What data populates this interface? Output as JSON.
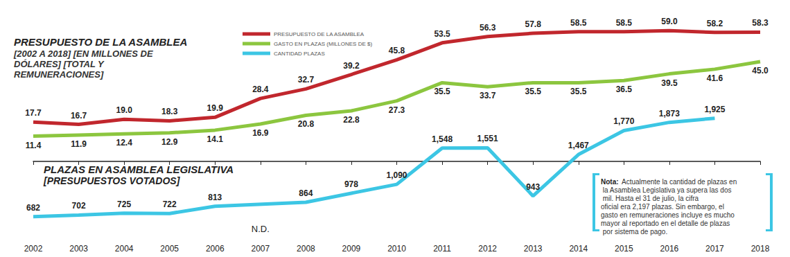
{
  "chart_data": {
    "type": "line",
    "title": "PRESUPUESTO DE LA ASAMBLEA",
    "subtitle": "[2002 A 2018] [EN MILLONES DE DÓLARES] [TOTAL Y REMUNERACIONES]",
    "annotations": [
      {
        "text": "PLAZAS EN ASAMBLEA LEGISLATIVA",
        "subtext": "[PRESUPUESTOS VOTADOS]"
      },
      {
        "label": "Nota:",
        "text": "Actualmente la cantidad de plazas en la Asamblea Legislativa ya supera las dos mil. Hasta el 31 de julio, la cifra oficial era 2,197 plazas. Sin embargo, el gasto en remuneraciones incluye es mucho mayor al reportado en el detalle de plazas por sistema de pago."
      }
    ],
    "categories": [
      "2002",
      "2003",
      "2004",
      "2005",
      "2006",
      "2007",
      "2008",
      "2009",
      "2010",
      "2011",
      "2012",
      "2013",
      "2014",
      "2015",
      "2016",
      "2017",
      "2018"
    ],
    "series": [
      {
        "name": "PRESUPUESTO DE LA ASAMBLEA",
        "color": "#c1272d",
        "values": [
          17.7,
          16.7,
          19.0,
          18.3,
          19.9,
          28.4,
          32.7,
          39.2,
          45.8,
          53.5,
          56.3,
          57.8,
          58.5,
          58.5,
          59.0,
          58.2,
          58.3
        ],
        "value_labels": [
          "17.7",
          "16.7",
          "19.0",
          "18.3",
          "19.9",
          "28.4",
          "32.7",
          "39.2",
          "45.8",
          "53.5",
          "56.3",
          "57.8",
          "58.5",
          "58.5",
          "59.0",
          "58.2",
          "58.3"
        ]
      },
      {
        "name": "GASTO EN PLAZAS (MILLONES DE $)",
        "color": "#8cc63f",
        "values": [
          11.4,
          11.9,
          12.4,
          12.9,
          14.1,
          16.9,
          20.8,
          22.8,
          27.3,
          35.5,
          33.7,
          35.5,
          35.5,
          36.5,
          39.5,
          41.6,
          45.0
        ],
        "value_labels": [
          "11.4",
          "11.9",
          "12.4",
          "12.9",
          "14.1",
          "16.9",
          "20.8",
          "22.8",
          "27.3",
          "35.5",
          "33.7",
          "35.5",
          "35.5",
          "36.5",
          "39.5",
          "41.6",
          "45.0"
        ]
      },
      {
        "name": "CANTIDAD PLAZAS",
        "color": "#3cc6e4",
        "axis": "y2",
        "values": [
          682,
          702,
          725,
          722,
          813,
          null,
          864,
          978,
          1090,
          1548,
          1551,
          943,
          1467,
          1770,
          1873,
          1925,
          null
        ],
        "value_labels": [
          "682",
          "702",
          "725",
          "722",
          "813",
          "N.D.",
          "864",
          "978",
          "1,090",
          "1,548",
          "1,551",
          "943",
          "1,467",
          "1,770",
          "1,873",
          "1,925",
          null
        ]
      }
    ],
    "ylim": [
      -35,
      65
    ],
    "y2lim": [
      400,
      3200
    ],
    "grid": false,
    "legend": "top",
    "data_labels": true,
    "tick_labels": "x"
  }
}
